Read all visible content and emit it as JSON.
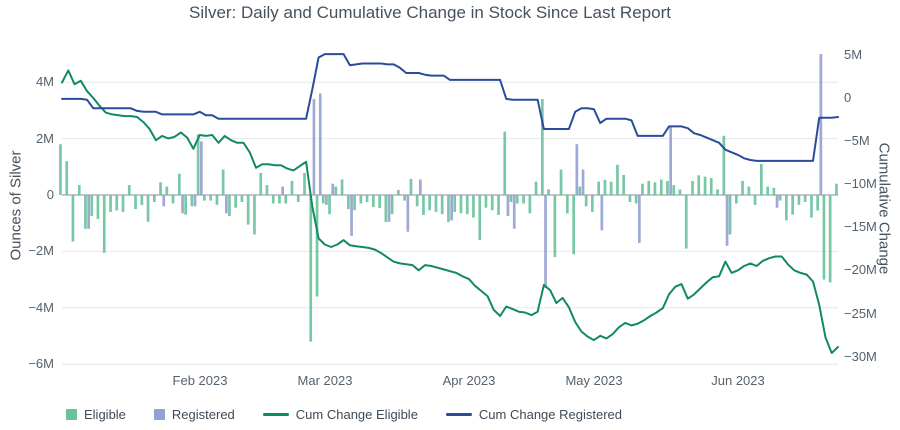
{
  "title": "Silver: Daily and Cumulative Change in Stock Since Last Report",
  "left_axis": {
    "title": "Ounces of Silver",
    "ticks": [
      "4M",
      "2M",
      "0",
      "−2M",
      "−4M",
      "−6M"
    ],
    "tick_values": [
      4,
      2,
      0,
      -2,
      -4,
      -6
    ]
  },
  "right_axis": {
    "title": "Cumulative Change",
    "ticks": [
      "5M",
      "0",
      "−5M",
      "−10M",
      "−15M",
      "−20M",
      "−25M",
      "−30M"
    ],
    "tick_values": [
      5,
      0,
      -5,
      -10,
      -15,
      -20,
      -25,
      -30
    ]
  },
  "x_axis": {
    "labels": [
      "Feb 2023",
      "Mar 2023",
      "Apr 2023",
      "May 2023",
      "Jun 2023"
    ],
    "label_day_indices": [
      22,
      42,
      65,
      85,
      108
    ]
  },
  "legend": {
    "eligible": "Eligible",
    "registered": "Registered",
    "cum_eligible": "Cum Change Eligible",
    "cum_registered": "Cum Change Registered"
  },
  "colors": {
    "eligible_bar": "#69c29c",
    "registered_bar": "#94a0d2",
    "cum_eligible_line": "#118a63",
    "cum_registered_line": "#2b4b9b",
    "grid": "#e6e8ec",
    "zero_line": "#8a9199",
    "text": "#46525e"
  },
  "chart_data": {
    "type": "bar",
    "note_units": "millions of ounces",
    "left_ylim": [
      -6.6,
      5.0
    ],
    "right_ylim": [
      -31,
      5.5
    ],
    "num_days": 125,
    "series": [
      {
        "name": "Eligible",
        "render": "bar",
        "axis": "left",
        "values": [
          1.8,
          1.2,
          -1.65,
          0.35,
          -1.2,
          -0.75,
          -0.85,
          -2.05,
          -0.6,
          -0.55,
          -0.6,
          0.35,
          -0.5,
          -0.35,
          -0.95,
          -0.25,
          0.45,
          0.3,
          -0.3,
          0.75,
          -0.7,
          -0.4,
          2.15,
          -0.2,
          -0.2,
          -0.35,
          0.9,
          -0.75,
          -0.45,
          -0.25,
          -1.05,
          -1.4,
          0.78,
          0.35,
          -0.3,
          -0.3,
          -0.3,
          0.5,
          -0.25,
          0.78,
          -5.2,
          -3.6,
          -0.3,
          -0.68,
          0.3,
          0.55,
          -0.5,
          -0.54,
          -0.3,
          -0.25,
          -0.43,
          -0.46,
          -0.96,
          -0.68,
          0.18,
          -0.2,
          0.57,
          -0.4,
          -0.71,
          -0.54,
          -0.6,
          -0.68,
          -0.96,
          -0.6,
          -0.65,
          -0.68,
          -0.8,
          -1.6,
          -0.45,
          -0.54,
          -0.71,
          2.25,
          -0.25,
          -0.3,
          -0.3,
          -0.65,
          0.47,
          3.4,
          0.2,
          -2.2,
          0.9,
          -0.65,
          -2.1,
          0.3,
          -0.4,
          -0.6,
          0.47,
          0.54,
          0.47,
          1.07,
          0.71,
          -0.25,
          -0.3,
          0.4,
          0.5,
          0.45,
          0.55,
          0.5,
          0.35,
          0.2,
          -1.9,
          0.5,
          0.7,
          0.65,
          0.6,
          0.2,
          2.1,
          -1.4,
          -0.3,
          0.5,
          0.3,
          -0.35,
          1.1,
          0.3,
          0.25,
          -0.2,
          -0.9,
          -0.7,
          -0.35,
          -0.25,
          -0.8,
          -0.55,
          -3.0,
          -3.1,
          0.4
        ]
      },
      {
        "name": "Registered",
        "render": "bar",
        "axis": "left",
        "values": [
          0,
          0,
          0,
          0,
          -1.2,
          0,
          0,
          0,
          0,
          0,
          0,
          0,
          0,
          0,
          0,
          0,
          -0.4,
          0,
          0,
          -0.65,
          0,
          -0.4,
          1.9,
          0,
          0,
          0,
          -0.65,
          0,
          0,
          0,
          0,
          0,
          0,
          0,
          0,
          0.3,
          0,
          0,
          0,
          0,
          3.4,
          3.6,
          -0.35,
          0.4,
          0,
          0,
          -1.45,
          0,
          0,
          0,
          0,
          0,
          -0.95,
          0,
          0,
          -1.3,
          0,
          0.55,
          0,
          0,
          0,
          0,
          -0.9,
          0,
          0,
          0,
          0,
          0,
          0,
          0,
          0,
          -0.75,
          -1.2,
          0,
          0,
          0,
          0,
          -3.3,
          0,
          0,
          0,
          0,
          1.8,
          0.9,
          0,
          0,
          -1.25,
          0,
          0,
          0,
          0,
          0,
          -1.7,
          0,
          0,
          0,
          0,
          2.4,
          0,
          0,
          0,
          0,
          0,
          0,
          0,
          0,
          -1.8,
          0,
          0,
          0,
          0,
          0,
          0,
          0,
          -0.45,
          0,
          0,
          0,
          0,
          0,
          0,
          5.0,
          0,
          0,
          0
        ]
      },
      {
        "name": "Cum Change Eligible",
        "render": "line",
        "axis": "right",
        "values": [
          1.8,
          3.2,
          1.6,
          2.0,
          0.8,
          0.0,
          -0.9,
          -1.7,
          -1.9,
          -2.0,
          -2.1,
          -2.1,
          -2.2,
          -2.8,
          -3.6,
          -4.9,
          -4.4,
          -4.7,
          -4.5,
          -4.0,
          -4.6,
          -5.9,
          -4.3,
          -4.4,
          -4.3,
          -5.2,
          -4.4,
          -4.9,
          -5.2,
          -5.2,
          -6.3,
          -8.1,
          -7.7,
          -7.7,
          -7.8,
          -7.8,
          -8.2,
          -8.4,
          -7.9,
          -7.4,
          -12.6,
          -16.3,
          -17.0,
          -17.3,
          -17.0,
          -16.5,
          -17.1,
          -17.2,
          -17.3,
          -17.4,
          -17.6,
          -18.0,
          -18.5,
          -19.0,
          -19.2,
          -19.3,
          -19.4,
          -20.0,
          -19.4,
          -19.5,
          -19.7,
          -19.9,
          -20.1,
          -20.3,
          -20.7,
          -21.0,
          -21.8,
          -22.4,
          -23.0,
          -24.6,
          -25.3,
          -24.2,
          -24.5,
          -24.8,
          -24.9,
          -25.2,
          -24.8,
          -21.7,
          -22.3,
          -23.8,
          -23.2,
          -24.3,
          -26.0,
          -27.1,
          -27.7,
          -28.1,
          -27.6,
          -27.9,
          -27.4,
          -26.6,
          -26.1,
          -26.4,
          -26.2,
          -25.8,
          -25.3,
          -24.9,
          -24.4,
          -22.8,
          -21.9,
          -21.6,
          -23.3,
          -22.8,
          -22.1,
          -21.4,
          -20.8,
          -20.7,
          -19.0,
          -20.3,
          -20.0,
          -19.5,
          -19.2,
          -19.5,
          -18.9,
          -18.6,
          -18.4,
          -18.4,
          -19.3,
          -20.0,
          -20.3,
          -20.5,
          -21.3,
          -24.0,
          -27.8,
          -29.6,
          -28.9
        ]
      },
      {
        "name": "Cum Change Registered",
        "render": "line",
        "axis": "right",
        "values": [
          -0.1,
          -0.1,
          -0.1,
          -0.1,
          -0.2,
          -1.2,
          -1.2,
          -1.2,
          -1.2,
          -1.2,
          -1.2,
          -1.2,
          -1.5,
          -1.6,
          -1.6,
          -1.6,
          -1.9,
          -1.9,
          -1.9,
          -1.9,
          -1.9,
          -1.9,
          -1.6,
          -2.0,
          -2.0,
          -2.4,
          -2.4,
          -2.4,
          -2.4,
          -2.4,
          -2.4,
          -2.4,
          -2.4,
          -2.4,
          -2.4,
          -2.4,
          -2.4,
          -2.4,
          -2.4,
          -2.4,
          1.0,
          4.7,
          5.1,
          5.1,
          5.1,
          5.1,
          3.8,
          3.9,
          4.0,
          4.0,
          4.0,
          4.0,
          3.9,
          3.9,
          3.5,
          2.9,
          2.9,
          2.9,
          2.7,
          2.6,
          2.6,
          2.6,
          2.1,
          2.1,
          2.1,
          2.1,
          2.1,
          2.1,
          2.1,
          2.1,
          2.1,
          -0.1,
          -0.2,
          -0.2,
          -0.2,
          -0.2,
          -0.2,
          -3.6,
          -3.6,
          -3.6,
          -3.6,
          -3.6,
          -1.6,
          -1.2,
          -1.2,
          -1.3,
          -2.9,
          -2.4,
          -2.4,
          -2.4,
          -2.4,
          -2.6,
          -4.4,
          -4.4,
          -4.4,
          -4.4,
          -4.4,
          -3.3,
          -3.3,
          -3.3,
          -3.5,
          -4.1,
          -4.3,
          -4.6,
          -4.9,
          -5.2,
          -6.0,
          -6.3,
          -6.6,
          -7.0,
          -7.2,
          -7.3,
          -7.3,
          -7.3,
          -7.3,
          -7.3,
          -7.3,
          -7.3,
          -7.3,
          -7.3,
          -7.3,
          -2.3,
          -2.3,
          -2.3,
          -2.2
        ]
      }
    ]
  }
}
